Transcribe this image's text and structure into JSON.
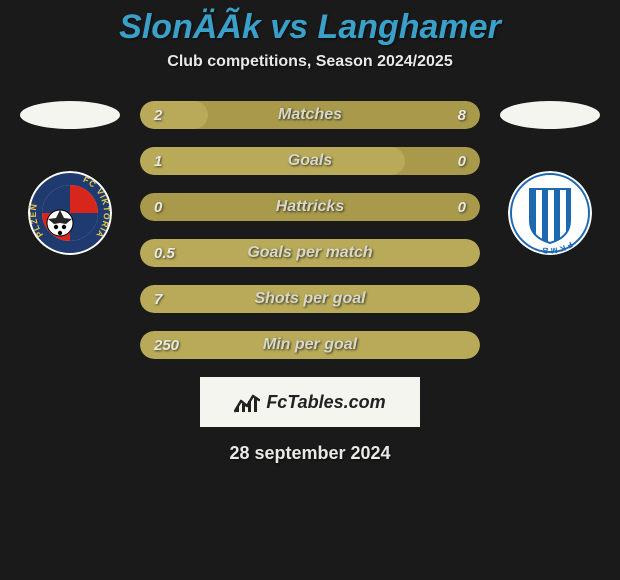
{
  "title": {
    "text": "SlonÄÃk vs Langhamer",
    "color": "#3aa0c9",
    "fontsize": 34
  },
  "subtitle": {
    "text": "Club competitions, Season 2024/2025",
    "color": "#e8e8e4",
    "fontsize": 16
  },
  "date": {
    "text": "28 september 2024",
    "color": "#e8e8e4",
    "fontsize": 18
  },
  "branding": {
    "text": "FcTables.com"
  },
  "colors": {
    "background": "#1a1a1a",
    "ellipse": "#f5f5f0",
    "branding_bg": "#f5f5f0"
  },
  "bars": {
    "track_color": "#a89a4a",
    "fill_color": "#b8aa58",
    "label_color": "#d8d8cc",
    "value_color": "#e8e8e4",
    "label_fontsize": 16,
    "value_fontsize": 15,
    "items": [
      {
        "left": "2",
        "label": "Matches",
        "right": "8",
        "fill_pct": 20,
        "track_on": true
      },
      {
        "left": "1",
        "label": "Goals",
        "right": "0",
        "fill_pct": 78,
        "track_on": true
      },
      {
        "left": "0",
        "label": "Hattricks",
        "right": "0",
        "fill_pct": 0,
        "track_on": true
      },
      {
        "left": "0.5",
        "label": "Goals per match",
        "right": "",
        "fill_pct": 100,
        "track_on": false
      },
      {
        "left": "7",
        "label": "Shots per goal",
        "right": "",
        "fill_pct": 100,
        "track_on": false
      },
      {
        "left": "250",
        "label": "Min per goal",
        "right": "",
        "fill_pct": 100,
        "track_on": false
      }
    ]
  },
  "logos": {
    "left": {
      "outer_bg": "#ffffff",
      "ring_color": "#1e3a6e",
      "ring_text": "FC VIKTORIA    PLZEŇ",
      "ring_text_color": "#e8c84a",
      "inner_top": "#d9261c",
      "inner_bottom": "#1e3a6e",
      "ball": "#ffffff"
    },
    "right": {
      "outer_bg": "#ffffff",
      "ring_text": "FKMB",
      "stripe_a": "#1e68b0",
      "stripe_b": "#ffffff"
    }
  }
}
